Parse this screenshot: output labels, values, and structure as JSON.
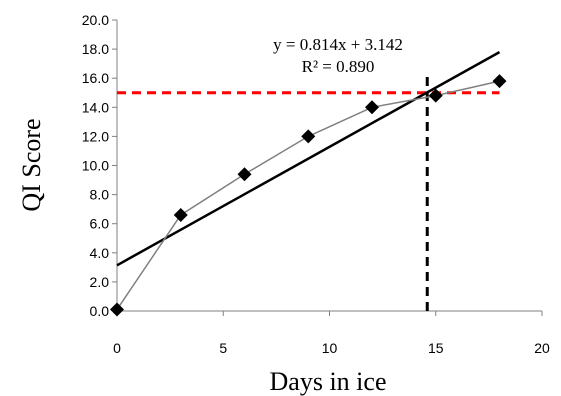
{
  "chart_data": {
    "type": "scatter",
    "xlabel": "Days in ice",
    "ylabel": "QI Score",
    "xlim": [
      0,
      20
    ],
    "ylim": [
      0,
      20
    ],
    "x_ticks": [
      0,
      5,
      10,
      15,
      20
    ],
    "y_ticks": [
      0,
      2,
      4,
      6,
      8,
      10,
      12,
      14,
      16,
      18,
      20
    ],
    "x_tick_labels": [
      "0",
      "5",
      "10",
      "15",
      "20"
    ],
    "y_tick_labels": [
      "0.0",
      "2.0",
      "4.0",
      "6.0",
      "8.0",
      "10.0",
      "12.0",
      "14.0",
      "16.0",
      "18.0",
      "20.0"
    ],
    "series": [
      {
        "x": [
          0,
          3,
          6,
          9,
          12,
          15,
          18
        ],
        "y": [
          0.1,
          6.6,
          9.4,
          12.0,
          14.0,
          14.8,
          15.8
        ],
        "marker": "diamond",
        "line": "connected",
        "marker_color": "#000000",
        "line_color": "#808080"
      }
    ],
    "trendline": {
      "slope": 0.814,
      "intercept": 3.142,
      "x_range": [
        0,
        18
      ],
      "color": "#000000",
      "equation_label": "y = 0.814x + 3.142",
      "r2_label": "R² = 0.890"
    },
    "reference_lines": [
      {
        "orientation": "horizontal",
        "y": 15,
        "x_range": [
          0,
          18
        ],
        "style": "dashed",
        "color": "#ff0000"
      },
      {
        "orientation": "vertical",
        "x": 14.6,
        "y_range": [
          0,
          16.4
        ],
        "style": "dashed",
        "color": "#000000"
      }
    ],
    "grid": false,
    "legend": "none"
  }
}
